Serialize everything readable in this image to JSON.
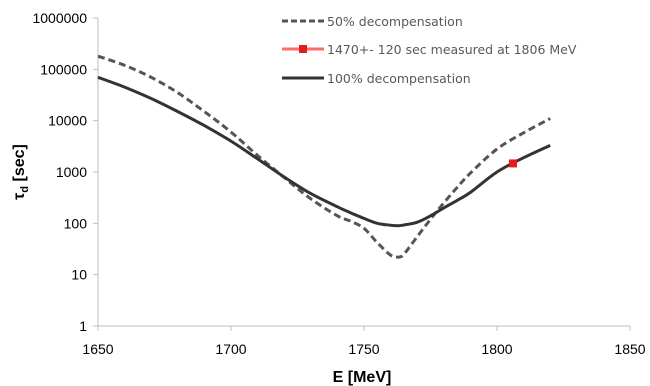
{
  "chart_data": {
    "type": "line",
    "title": "",
    "xlabel": "E [MeV]",
    "ylabel_main": "τ",
    "ylabel_sub": "d",
    "ylabel_tail": " [sec]",
    "xlim": [
      1650,
      1850
    ],
    "ylim": [
      1,
      1000000
    ],
    "yscale": "log",
    "grid": false,
    "legend_position": "top-right",
    "x_ticks": [
      1650,
      1700,
      1750,
      1800,
      1850
    ],
    "x_tick_labels": [
      "1650",
      "1700",
      "1750",
      "1800",
      "1850"
    ],
    "y_ticks": [
      1,
      10,
      100,
      1000,
      10000,
      100000,
      1000000
    ],
    "y_tick_labels": [
      "1",
      "10",
      "100",
      "1000",
      "10000",
      "100000",
      "1000000"
    ],
    "series": [
      {
        "name": "50% decompensation",
        "style": "dashed",
        "color": "#555555",
        "x": [
          1650,
          1660,
          1670,
          1680,
          1690,
          1700,
          1710,
          1720,
          1730,
          1740,
          1745,
          1750,
          1755,
          1760,
          1763,
          1765,
          1770,
          1775,
          1780,
          1785,
          1790,
          1800,
          1810,
          1820
        ],
        "y": [
          180000,
          120000,
          70000,
          35000,
          15000,
          6000,
          2100,
          780,
          300,
          140,
          110,
          80,
          42,
          24,
          22,
          25,
          55,
          120,
          250,
          500,
          950,
          2800,
          5800,
          11000
        ]
      },
      {
        "name": "1470+- 120 sec measured at 1806 MeV",
        "style": "marker",
        "color": "#e51c1c",
        "x": [
          1806
        ],
        "y": [
          1470
        ],
        "error": [
          120
        ]
      },
      {
        "name": "100% decompensation",
        "style": "solid",
        "color": "#333333",
        "x": [
          1650,
          1660,
          1670,
          1680,
          1690,
          1700,
          1710,
          1720,
          1730,
          1740,
          1745,
          1750,
          1755,
          1760,
          1763,
          1765,
          1770,
          1775,
          1780,
          1785,
          1790,
          1800,
          1810,
          1820
        ],
        "y": [
          70000,
          45000,
          27000,
          15000,
          8000,
          4000,
          1800,
          800,
          380,
          210,
          160,
          125,
          100,
          92,
          90,
          93,
          105,
          140,
          200,
          280,
          400,
          1000,
          1900,
          3300
        ]
      }
    ]
  }
}
